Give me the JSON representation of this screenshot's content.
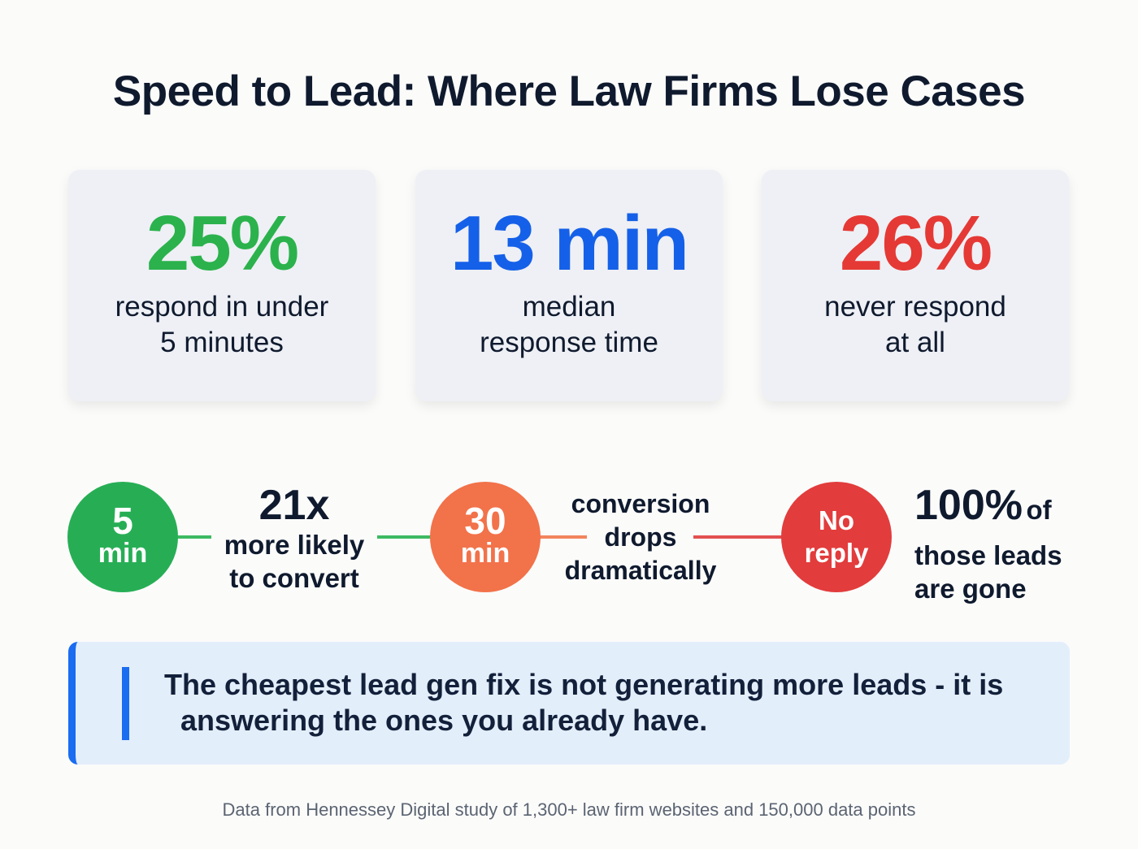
{
  "title": "Speed to Lead: Where Law Firms Lose Cases",
  "colors": {
    "green": "#2bb24c",
    "blue": "#1560e8",
    "red": "#e53935",
    "orange": "#f2724a",
    "accent": "#1a6cf0"
  },
  "stats": [
    {
      "value": "25%",
      "line1": "respond in under",
      "line2": "5 minutes",
      "color": "#2bb24c"
    },
    {
      "value": "13 min",
      "line1": "median",
      "line2": "response time",
      "color": "#1560e8"
    },
    {
      "value": "26%",
      "line1": "never respond",
      "line2": "at all",
      "color": "#e53935"
    }
  ],
  "timeline": {
    "step1": {
      "top": "5",
      "bottom": "min",
      "headline": "21x",
      "line1": "more likely",
      "line2": "to convert"
    },
    "step2": {
      "top": "30",
      "bottom": "min",
      "line1": "conversion",
      "line2": "drops",
      "line3": "dramatically"
    },
    "step3": {
      "top": "No",
      "bottom": "reply",
      "headline": "100%",
      "headline_suffix": "of",
      "line1": "those leads",
      "line2": "are gone"
    }
  },
  "callout": {
    "line1": "The cheapest lead gen fix is not generating more leads - it is",
    "line2": "answering the ones you already have."
  },
  "footer": "Data from Hennessey Digital study of 1,300+ law firm websites and 150,000 data points"
}
